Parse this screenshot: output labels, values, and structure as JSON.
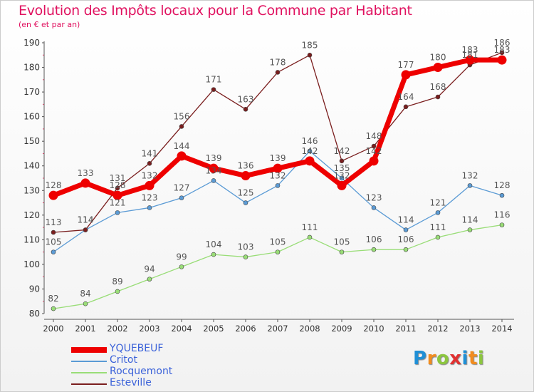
{
  "header": {
    "title": "Evolution des Impôts locaux pour la Commune par Habitant",
    "subtitle": "(en € et par an)"
  },
  "logo": {
    "text": "Proxiti",
    "colors": [
      "#1f8fd6",
      "#f28c1e",
      "#8cc63f",
      "#e03030",
      "#1f8fd6",
      "#f28c1e",
      "#8cc63f"
    ]
  },
  "chart_data": {
    "type": "line",
    "title": "Evolution des Impôts locaux pour la Commune par Habitant",
    "subtitle": "(en € et par an)",
    "x": [
      "2000",
      "2001",
      "2002",
      "2003",
      "2004",
      "2005",
      "2006",
      "2007",
      "2008",
      "2009",
      "2010",
      "2011",
      "2012",
      "2013",
      "2014"
    ],
    "ylim": [
      80,
      190
    ],
    "yticks": [
      80,
      90,
      100,
      110,
      120,
      130,
      140,
      150,
      160,
      170,
      180,
      190
    ],
    "grid": false,
    "legend_position": "bottom-left",
    "series": [
      {
        "name": "YQUEBEUF",
        "color": "#ee0000",
        "values": [
          128,
          133,
          128,
          132,
          144,
          139,
          136,
          139,
          142,
          132,
          142,
          177,
          180,
          183,
          183
        ]
      },
      {
        "name": "Critot",
        "color": "#5b9bd5",
        "values": [
          105,
          114,
          121,
          123,
          127,
          134,
          125,
          132,
          146,
          135,
          123,
          114,
          121,
          132,
          128
        ]
      },
      {
        "name": "Rocquemont",
        "color": "#99dd77",
        "values": [
          82,
          84,
          89,
          94,
          99,
          104,
          103,
          105,
          111,
          105,
          106,
          106,
          111,
          114,
          116
        ]
      },
      {
        "name": "Esteville",
        "color": "#7a1e1e",
        "values": [
          113,
          114,
          131,
          141,
          156,
          171,
          163,
          178,
          185,
          142,
          148,
          164,
          168,
          181,
          186
        ]
      }
    ]
  }
}
